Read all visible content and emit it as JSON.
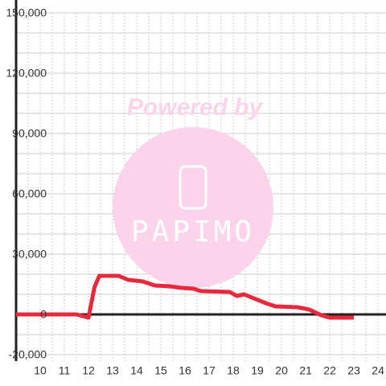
{
  "chart_data": {
    "type": "line",
    "watermark": {
      "title": "Powered by",
      "brand": "PAPIMO"
    },
    "x": [
      9,
      11.5,
      12,
      12.25,
      12.45,
      13.25,
      13.65,
      14.25,
      14.75,
      15.35,
      15.85,
      16.35,
      16.65,
      17.85,
      18.15,
      18.45,
      18.85,
      19.35,
      19.75,
      20.65,
      21.15,
      21.65,
      22,
      23
    ],
    "series": [
      {
        "color": "#e8283c",
        "values": [
          0,
          0,
          -1600,
          13600,
          19200,
          19200,
          17200,
          16400,
          14400,
          14000,
          13200,
          12800,
          11600,
          11200,
          9200,
          10000,
          8000,
          5600,
          4000,
          3600,
          2400,
          -400,
          -1600,
          -1600
        ]
      }
    ],
    "xlim": [
      9,
      24.33
    ],
    "ylim": [
      -20000,
      150000
    ],
    "xticks": [
      10,
      11,
      12,
      13,
      14,
      15,
      16,
      17,
      18,
      19,
      20,
      21,
      22,
      23,
      24
    ],
    "yticks": [
      {
        "value": -20000,
        "label": "-20,000"
      },
      0,
      {
        "value": 30000,
        "label": "30,000"
      },
      {
        "value": 60000,
        "label": "60,000"
      },
      {
        "value": 90000,
        "label": "90,000"
      },
      {
        "value": 120000,
        "label": "120,000"
      },
      {
        "value": 150000,
        "label": "150,000"
      }
    ],
    "ygrid": [
      -10000,
      10000,
      20000,
      40000,
      50000,
      70000,
      80000,
      100000,
      110000,
      130000,
      140000
    ],
    "xgrid": [
      9.5,
      10.5,
      11.5,
      12.5,
      13.5,
      14.5,
      15.5,
      16.5,
      17.5,
      18.5,
      19.5,
      20.5,
      21.5,
      22.5,
      23.5
    ],
    "grid": true
  }
}
